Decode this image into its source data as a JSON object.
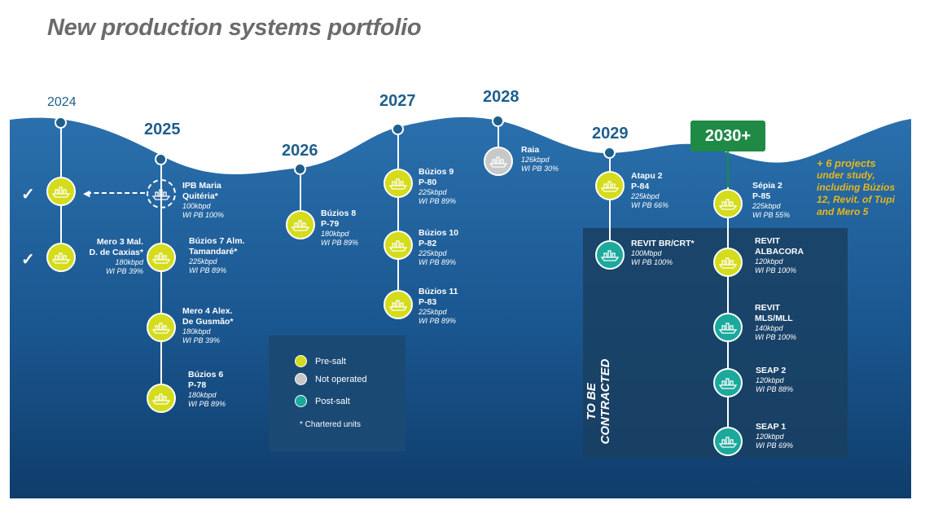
{
  "title": "New production systems portfolio",
  "years": {
    "y2024": "2024",
    "y2025": "2025",
    "y2026": "2026",
    "y2027": "2027",
    "y2028": "2028",
    "y2029": "2029",
    "y2030": "2030+"
  },
  "units": {
    "mero3": {
      "name": "Mero 3 Mal.\nD. de Caxias*",
      "cap": "180kbpd",
      "wi": "WI PB 39%",
      "type": "pre-salt"
    },
    "ipb": {
      "name": "IPB Maria\nQuitéria*",
      "cap": "100kbpd",
      "wi": "WI PB 100%",
      "type": "pre-salt"
    },
    "buzios7": {
      "name": "Búzios 7 Alm.\nTamandaré*",
      "cap": "225kbpd",
      "wi": "WI PB 89%",
      "type": "pre-salt"
    },
    "mero4": {
      "name": "Mero 4 Alex.\nDe Gusmão*",
      "cap": "180kbpd",
      "wi": "WI PB 39%",
      "type": "pre-salt"
    },
    "buzios6": {
      "name": "Búzios 6\nP-78",
      "cap": "180kbpd",
      "wi": "WI PB 89%",
      "type": "pre-salt"
    },
    "buzios8": {
      "name": "Búzios 8\nP-79",
      "cap": "180kbpd",
      "wi": "WI PB 89%",
      "type": "pre-salt"
    },
    "buzios9": {
      "name": "Búzios 9\nP-80",
      "cap": "225kbpd",
      "wi": "WI PB 89%",
      "type": "pre-salt"
    },
    "buzios10": {
      "name": "Búzios 10\nP-82",
      "cap": "225kbpd",
      "wi": "WI PB 89%",
      "type": "pre-salt"
    },
    "buzios11": {
      "name": "Búzios 11\nP-83",
      "cap": "225kbpd",
      "wi": "WI PB 89%",
      "type": "pre-salt"
    },
    "raia": {
      "name": "Raia",
      "cap": "126kbpd",
      "wi": "WI PB 30%",
      "type": "not-operated"
    },
    "atapu2": {
      "name": "Atapu 2\nP-84",
      "cap": "225kbpd",
      "wi": "WI PB 66%",
      "type": "pre-salt"
    },
    "revitbr": {
      "name": "REVIT BR/CRT*",
      "cap": "100Mbpd",
      "wi": "WI PB 100%",
      "type": "post-salt"
    },
    "sepia2": {
      "name": "Sépia 2\nP-85",
      "cap": "225kbpd",
      "wi": "WI PB 55%",
      "type": "pre-salt"
    },
    "revitalba": {
      "name": "REVIT\nALBACORA",
      "cap": "120kbpd",
      "wi": "WI PB 100%",
      "type": "pre-salt"
    },
    "revitmls": {
      "name": "REVIT\nMLS/MLL",
      "cap": "140kbpd",
      "wi": "WI PB 100%",
      "type": "post-salt"
    },
    "seap2": {
      "name": "SEAP 2",
      "cap": "120kbpd",
      "wi": "WI PB 88%",
      "type": "post-salt"
    },
    "seap1": {
      "name": "SEAP 1",
      "cap": "120kbpd",
      "wi": "WI PB 69%",
      "type": "post-salt"
    }
  },
  "legend": {
    "pre_salt": "Pre-salt",
    "not_operated": "Not operated",
    "post_salt": "Post-salt",
    "note": "* Chartered units"
  },
  "to_be_contracted": "TO BE\nCONTRACTED",
  "extra": {
    "lead": "+ 6 projects",
    "rest": "under study,\nincluding Búzios\n12, Revit. of Tupi\nand Mero 5"
  },
  "colors": {
    "pre_salt": "#d4dc1c",
    "post_salt": "#1ba99c",
    "not_operated": "#c8c8c8",
    "sea_dark": "#0f3d6b",
    "sea_light": "#2368a6",
    "year_text": "#1f5f8c",
    "highlight_green": "#1f8a46",
    "extra_text": "#e7b71a"
  },
  "icons": {
    "unit": "fpso-ship-icon",
    "check": "check-mark-icon"
  }
}
